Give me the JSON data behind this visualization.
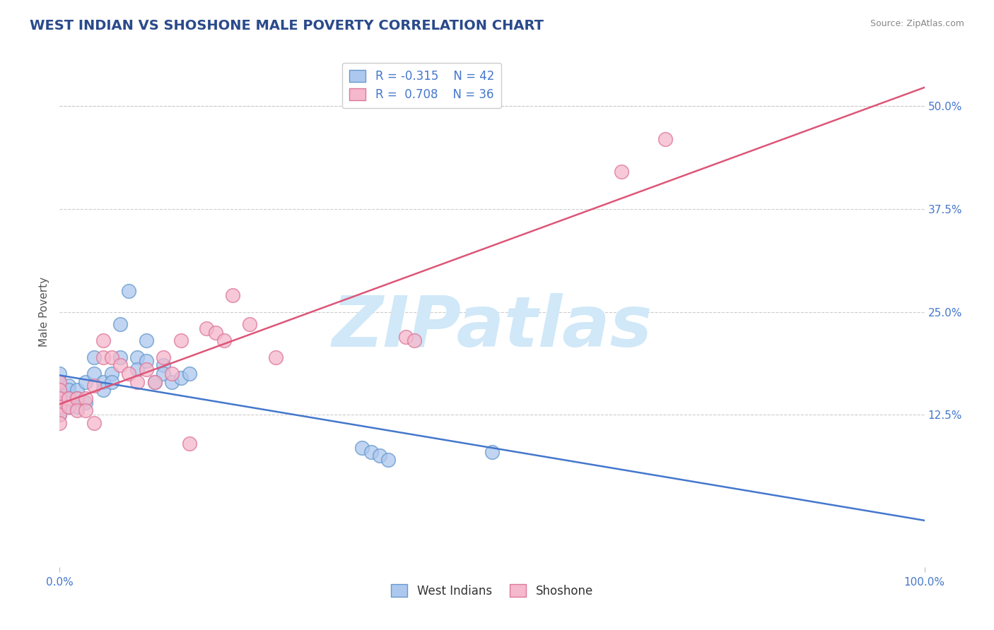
{
  "title": "WEST INDIAN VS SHOSHONE MALE POVERTY CORRELATION CHART",
  "source_text": "Source: ZipAtlas.com",
  "ylabel": "Male Poverty",
  "xlim": [
    0.0,
    1.0
  ],
  "ylim": [
    -0.06,
    0.56
  ],
  "ytick_labels": [
    "12.5%",
    "25.0%",
    "37.5%",
    "50.0%"
  ],
  "ytick_positions": [
    0.125,
    0.25,
    0.375,
    0.5
  ],
  "grid_color": "#cccccc",
  "background_color": "#ffffff",
  "title_color": "#2a4a8a",
  "title_fontsize": 14,
  "watermark": "ZIPatlas",
  "watermark_color": "#d0e8f8",
  "west_indians_R": -0.315,
  "west_indians_N": 42,
  "west_indians_color": "#adc8ee",
  "west_indians_edge_color": "#6699cc",
  "west_indians_line_color": "#4477cc",
  "west_indians_x": [
    0.0,
    0.0,
    0.0,
    0.0,
    0.0,
    0.0,
    0.0,
    0.0,
    0.0,
    0.01,
    0.01,
    0.01,
    0.01,
    0.02,
    0.02,
    0.02,
    0.03,
    0.03,
    0.04,
    0.04,
    0.05,
    0.05,
    0.06,
    0.06,
    0.07,
    0.07,
    0.08,
    0.09,
    0.09,
    0.1,
    0.1,
    0.11,
    0.12,
    0.12,
    0.13,
    0.14,
    0.15,
    0.35,
    0.36,
    0.37,
    0.38,
    0.5
  ],
  "west_indians_y": [
    0.175,
    0.165,
    0.155,
    0.15,
    0.145,
    0.14,
    0.135,
    0.13,
    0.125,
    0.16,
    0.155,
    0.145,
    0.135,
    0.155,
    0.145,
    0.135,
    0.165,
    0.14,
    0.195,
    0.175,
    0.165,
    0.155,
    0.175,
    0.165,
    0.235,
    0.195,
    0.275,
    0.195,
    0.18,
    0.215,
    0.19,
    0.165,
    0.185,
    0.175,
    0.165,
    0.17,
    0.175,
    0.085,
    0.08,
    0.075,
    0.07,
    0.08
  ],
  "shoshone_R": 0.708,
  "shoshone_N": 36,
  "shoshone_color": "#f5b8cc",
  "shoshone_edge_color": "#dd7799",
  "shoshone_line_color": "#dd5577",
  "shoshone_x": [
    0.0,
    0.0,
    0.0,
    0.0,
    0.0,
    0.0,
    0.01,
    0.01,
    0.02,
    0.02,
    0.03,
    0.03,
    0.04,
    0.04,
    0.05,
    0.05,
    0.06,
    0.07,
    0.08,
    0.09,
    0.1,
    0.11,
    0.12,
    0.13,
    0.14,
    0.15,
    0.17,
    0.18,
    0.19,
    0.2,
    0.22,
    0.25,
    0.4,
    0.41,
    0.65,
    0.7
  ],
  "shoshone_y": [
    0.165,
    0.155,
    0.145,
    0.135,
    0.125,
    0.115,
    0.145,
    0.135,
    0.145,
    0.13,
    0.145,
    0.13,
    0.16,
    0.115,
    0.215,
    0.195,
    0.195,
    0.185,
    0.175,
    0.165,
    0.18,
    0.165,
    0.195,
    0.175,
    0.215,
    0.09,
    0.23,
    0.225,
    0.215,
    0.27,
    0.235,
    0.195,
    0.22,
    0.215,
    0.42,
    0.46
  ],
  "legend_fontsize": 12,
  "axis_label_fontsize": 11,
  "tick_fontsize": 11,
  "tick_color": "#4477cc",
  "source_fontsize": 9
}
